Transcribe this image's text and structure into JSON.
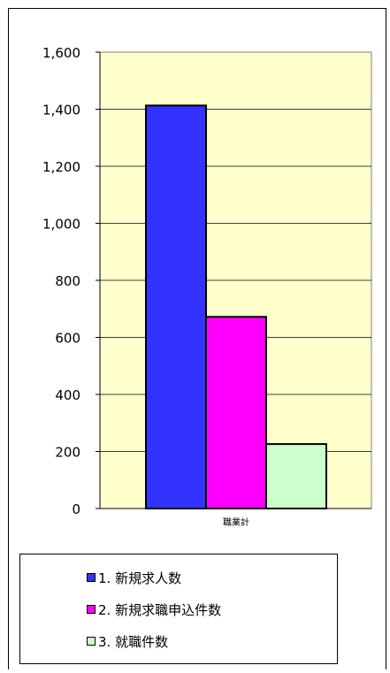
{
  "chart_data": {
    "type": "bar",
    "categories": [
      "職業計"
    ],
    "series": [
      {
        "name": "1. 新規求人数",
        "color": "#3333ff",
        "values": [
          1413
        ]
      },
      {
        "name": "2. 新規求職申込件数",
        "color": "#ff00ff",
        "values": [
          672
        ]
      },
      {
        "name": "3. 就職件数",
        "color": "#ccffcc",
        "values": [
          226
        ]
      }
    ],
    "yticks": [
      "0",
      "200",
      "400",
      "600",
      "800",
      "1,000",
      "1,200",
      "1,400",
      "1,600"
    ],
    "ylim": [
      0,
      1600
    ],
    "title": "",
    "xlabel": "",
    "ylabel": "",
    "grid": true,
    "legend_position": "bottom",
    "plot_background": "#ffffcc"
  }
}
